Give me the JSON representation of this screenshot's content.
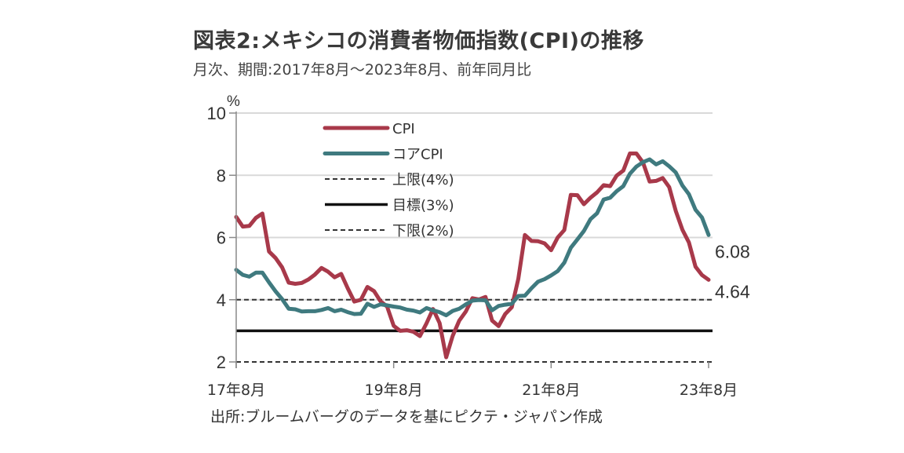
{
  "header": {
    "title": "図表2:メキシコの消費者物価指数(CPI)の推移",
    "subtitle": "月次、期間:2017年8月～2023年8月、前年同月比"
  },
  "footer": {
    "source": "出所:ブルームバーグのデータを基にピクテ・ジャパン作成"
  },
  "chart_data": {
    "type": "line",
    "title": "図表2:メキシコの消費者物価指数(CPI)の推移",
    "subtitle": "月次、期間:2017年8月～2023年8月、前年同月比",
    "xlabel": "",
    "ylabel": "%",
    "ylim": [
      2,
      10
    ],
    "yticks": [
      2,
      4,
      6,
      8,
      10
    ],
    "ytick_labels": [
      "2",
      "4",
      "6",
      "8",
      "10"
    ],
    "xticks": [
      {
        "index": 0,
        "label": "17年8月"
      },
      {
        "index": 24,
        "label": "19年8月"
      },
      {
        "index": 48,
        "label": "21年8月"
      },
      {
        "index": 72,
        "label": "23年8月"
      }
    ],
    "grid": "horizontal",
    "legend_position": "top-left",
    "x_start": "2017-08",
    "x_end": "2023-08",
    "frequency": "monthly",
    "series": [
      {
        "name": "CPI",
        "color": "#a8394a",
        "style": "solid",
        "end_label": "4.64",
        "values": [
          6.66,
          6.35,
          6.37,
          6.63,
          6.77,
          5.55,
          5.34,
          5.04,
          4.55,
          4.51,
          4.54,
          4.65,
          4.81,
          5.02,
          4.9,
          4.72,
          4.83,
          4.37,
          3.94,
          4.0,
          4.41,
          4.28,
          3.95,
          3.78,
          3.16,
          3.0,
          3.02,
          2.97,
          2.83,
          3.24,
          3.7,
          3.25,
          2.15,
          2.84,
          3.33,
          3.62,
          4.05,
          4.01,
          4.09,
          3.33,
          3.15,
          3.54,
          3.76,
          4.67,
          6.08,
          5.89,
          5.88,
          5.81,
          5.59,
          6.0,
          6.24,
          7.37,
          7.36,
          7.07,
          7.28,
          7.45,
          7.68,
          7.65,
          7.99,
          8.15,
          8.7,
          8.7,
          8.41,
          7.8,
          7.82,
          7.91,
          7.62,
          6.85,
          6.25,
          5.84,
          5.06,
          4.79,
          4.64
        ]
      },
      {
        "name": "コアCPI",
        "color": "#3f7a7f",
        "style": "solid",
        "end_label": "6.08",
        "values": [
          4.96,
          4.8,
          4.74,
          4.87,
          4.87,
          4.56,
          4.27,
          4.02,
          3.71,
          3.69,
          3.62,
          3.63,
          3.63,
          3.67,
          3.73,
          3.63,
          3.68,
          3.6,
          3.54,
          3.55,
          3.87,
          3.77,
          3.85,
          3.82,
          3.78,
          3.75,
          3.68,
          3.65,
          3.59,
          3.73,
          3.66,
          3.6,
          3.5,
          3.64,
          3.71,
          3.85,
          3.97,
          3.99,
          3.98,
          3.66,
          3.8,
          3.84,
          3.87,
          4.12,
          4.13,
          4.37,
          4.58,
          4.66,
          4.78,
          4.92,
          5.19,
          5.67,
          5.94,
          6.21,
          6.59,
          6.78,
          7.22,
          7.28,
          7.49,
          7.65,
          8.05,
          8.28,
          8.42,
          8.51,
          8.35,
          8.45,
          8.29,
          8.09,
          7.67,
          7.39,
          6.89,
          6.64,
          6.08
        ]
      },
      {
        "name": "上限(4%)",
        "color": "#333333",
        "style": "dashed",
        "constant": 4
      },
      {
        "name": "目標(3%)",
        "color": "#111111",
        "style": "solid-thick",
        "constant": 3
      },
      {
        "name": "下限(2%)",
        "color": "#333333",
        "style": "dashed",
        "constant": 2
      }
    ]
  }
}
